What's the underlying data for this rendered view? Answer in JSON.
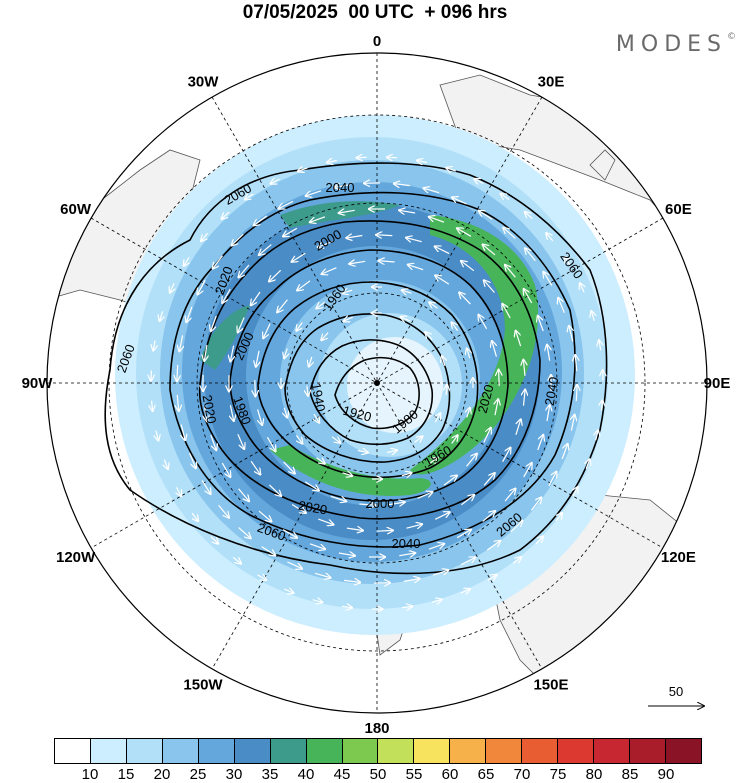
{
  "header": {
    "title": "07/05/2025  00 UTC  + 096 hrs",
    "logo": "MODES",
    "logo_mark": "©"
  },
  "map": {
    "projection": "south-polar-stereographic",
    "longitude_labels": [
      {
        "text": "0",
        "lon": 0
      },
      {
        "text": "30E",
        "lon": 30
      },
      {
        "text": "60E",
        "lon": 60
      },
      {
        "text": "90E",
        "lon": 90
      },
      {
        "text": "120E",
        "lon": 120
      },
      {
        "text": "150E",
        "lon": 150
      },
      {
        "text": "180",
        "lon": 180
      },
      {
        "text": "150W",
        "lon": -150
      },
      {
        "text": "120W",
        "lon": -120
      },
      {
        "text": "90W",
        "lon": -90
      },
      {
        "text": "60W",
        "lon": -60
      },
      {
        "text": "30W",
        "lon": -30
      }
    ],
    "contour_labels": [
      "2060",
      "2040",
      "2000",
      "2020",
      "1960",
      "2000",
      "2020",
      "2060",
      "2060",
      "1940",
      "1980",
      "2020",
      "1920",
      "1980",
      "1960",
      "2040",
      "2020",
      "2000",
      "2040",
      "2060",
      "2060"
    ],
    "colors": {
      "land": "#f2f2f2",
      "contour": "#000000",
      "wind_vector": "#ffffff"
    }
  },
  "reference_vector": {
    "label": "50"
  },
  "colorbar": {
    "colors": [
      "#ffffff",
      "#cdeefe",
      "#b3e0f9",
      "#89c5ec",
      "#64a7dd",
      "#4a8cc6",
      "#3d9b8c",
      "#47b45a",
      "#7dc950",
      "#c3e05a",
      "#f8e35f",
      "#f6b14a",
      "#f1873a",
      "#e95d33",
      "#dc3a31",
      "#c62731",
      "#a91c2a",
      "#8a1425"
    ],
    "labels": [
      "10",
      "15",
      "20",
      "25",
      "30",
      "35",
      "40",
      "45",
      "50",
      "55",
      "60",
      "65",
      "70",
      "75",
      "80",
      "85",
      "90"
    ]
  }
}
